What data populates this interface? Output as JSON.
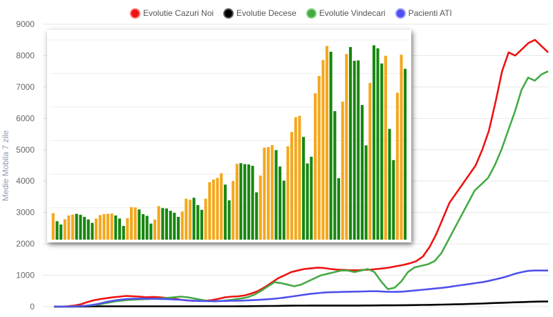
{
  "legend": [
    {
      "label": "Evolutie Cazuri Noi",
      "color": "#ee1111",
      "ring": "#ff6f6f"
    },
    {
      "label": "Evolutie Decese",
      "color": "#000000",
      "ring": "#5a5a5a"
    },
    {
      "label": "Evolutie Vindecari",
      "color": "#44aa44",
      "ring": "#86d086"
    },
    {
      "label": "Pacienti ATI",
      "color": "#4f4fee",
      "ring": "#9595ff"
    }
  ],
  "chart_data": [
    {
      "type": "line",
      "ylabel": "Medie Mobila 7 zile",
      "ylim": [
        0,
        9000
      ],
      "yticks": [
        "0",
        "1000",
        "2000",
        "3000",
        "4000",
        "5000",
        "6000",
        "7000",
        "8000",
        "9000"
      ],
      "grid": true,
      "legend_position": "top",
      "series": [
        {
          "name": "Evolutie Cazuri Noi",
          "color": "#ee1111",
          "values": [
            0,
            0,
            10,
            30,
            70,
            140,
            200,
            240,
            270,
            300,
            320,
            340,
            330,
            320,
            300,
            310,
            300,
            280,
            260,
            230,
            200,
            190,
            180,
            190,
            210,
            250,
            300,
            320,
            330,
            360,
            420,
            500,
            620,
            760,
            900,
            1000,
            1100,
            1150,
            1200,
            1220,
            1240,
            1230,
            1200,
            1180,
            1170,
            1160,
            1160,
            1170,
            1180,
            1200,
            1220,
            1250,
            1290,
            1330,
            1380,
            1450,
            1600,
            1900,
            2300,
            2800,
            3300,
            3600,
            3900,
            4200,
            4500,
            5000,
            5600,
            6500,
            7500,
            8100,
            8000,
            8200,
            8400,
            8500,
            8300,
            8100
          ]
        },
        {
          "name": "Evolutie Decese",
          "color": "#000000",
          "values": [
            0,
            0,
            0,
            2,
            4,
            6,
            8,
            10,
            10,
            11,
            12,
            12,
            12,
            11,
            11,
            10,
            10,
            10,
            10,
            10,
            10,
            10,
            10,
            10,
            11,
            12,
            12,
            12,
            13,
            14,
            15,
            17,
            20,
            22,
            25,
            28,
            30,
            32,
            34,
            35,
            36,
            36,
            36,
            36,
            36,
            36,
            36,
            37,
            38,
            40,
            41,
            42,
            44,
            46,
            48,
            50,
            54,
            58,
            62,
            66,
            70,
            74,
            80,
            86,
            92,
            100,
            108,
            116,
            124,
            130,
            138,
            146,
            152,
            158,
            162,
            165
          ]
        },
        {
          "name": "Evolutie Vindecari",
          "color": "#44aa44",
          "values": [
            0,
            0,
            0,
            10,
            20,
            30,
            50,
            80,
            120,
            160,
            190,
            210,
            220,
            230,
            240,
            250,
            260,
            280,
            300,
            320,
            300,
            260,
            220,
            180,
            170,
            180,
            200,
            230,
            260,
            300,
            380,
            500,
            640,
            780,
            750,
            700,
            650,
            700,
            800,
            900,
            1000,
            1050,
            1100,
            1150,
            1150,
            1100,
            1150,
            1200,
            1100,
            800,
            560,
            600,
            800,
            1100,
            1250,
            1300,
            1350,
            1450,
            1700,
            2100,
            2500,
            2900,
            3300,
            3700,
            3900,
            4100,
            4500,
            5000,
            5600,
            6200,
            6900,
            7300,
            7200,
            7400,
            7500
          ]
        },
        {
          "name": "Pacienti ATI",
          "color": "#4f4fee",
          "values": [
            0,
            0,
            0,
            5,
            15,
            30,
            60,
            100,
            150,
            190,
            220,
            240,
            250,
            255,
            255,
            250,
            245,
            240,
            230,
            220,
            205,
            190,
            180,
            175,
            175,
            178,
            182,
            186,
            190,
            196,
            205,
            215,
            228,
            245,
            265,
            290,
            320,
            350,
            380,
            410,
            430,
            450,
            460,
            465,
            470,
            475,
            480,
            485,
            490,
            490,
            480,
            470,
            470,
            480,
            500,
            520,
            540,
            560,
            580,
            600,
            630,
            660,
            690,
            720,
            750,
            780,
            820,
            870,
            920,
            980,
            1050,
            1100,
            1140,
            1150,
            1150,
            1150
          ]
        }
      ]
    },
    {
      "type": "bar",
      "inset": true,
      "ylim": [
        2150,
        8200
      ],
      "series": [
        {
          "name": "",
          "color": "#f4a81d",
          "values": [
            2940,
            2700,
            2600,
            2760,
            2870,
            2900,
            2920,
            2890,
            2830,
            2750,
            2650,
            2780,
            2880,
            2910,
            2920,
            2930,
            2870,
            2780,
            2560,
            2790,
            3120,
            3110,
            3050,
            2910,
            2860,
            2630,
            2750,
            3150,
            3090,
            3080,
            3010,
            2950,
            2830,
            2990,
            3370,
            3340,
            3400,
            3180,
            3040,
            3370,
            3860,
            3940,
            3990,
            4130,
            3790,
            3320,
            3900,
            4410,
            4430,
            4400,
            4390,
            4350,
            3560,
            4060,
            4890,
            4910,
            4970,
            4820,
            4330,
            3910,
            4930,
            5360,
            5800,
            5840,
            5210,
            4420,
            4620,
            6510,
            7030,
            7500,
            7920,
            7750,
            5980,
            3980,
            6260,
            7680,
            7890,
            7480,
            7490,
            6160,
            4960,
            6820,
            7940,
            7850,
            7400,
            7630,
            5450,
            4520,
            6530,
            7660,
            7240
          ]
        },
        {
          "name": "",
          "color": "#17870f",
          "values": []
        }
      ],
      "bar_colors_note": "alternating groups: orange/green by weekday",
      "green_mask": [
        0,
        1,
        1,
        0,
        0,
        0,
        1,
        1,
        1,
        1,
        1,
        0,
        0,
        0,
        0,
        0,
        1,
        1,
        1,
        0,
        0,
        0,
        1,
        1,
        1,
        1,
        0,
        0,
        1,
        1,
        1,
        1,
        1,
        0,
        0,
        0,
        1,
        1,
        1,
        0,
        0,
        0,
        0,
        0,
        1,
        1,
        0,
        0,
        1,
        1,
        1,
        1,
        1,
        0,
        0,
        0,
        0,
        1,
        1,
        1,
        0,
        0,
        0,
        0,
        1,
        1,
        1,
        0,
        0,
        0,
        0,
        1,
        1,
        1,
        0,
        0,
        1,
        1,
        1,
        1,
        1,
        0,
        1,
        1,
        1,
        0,
        1,
        1,
        0,
        0,
        1
      ]
    }
  ]
}
